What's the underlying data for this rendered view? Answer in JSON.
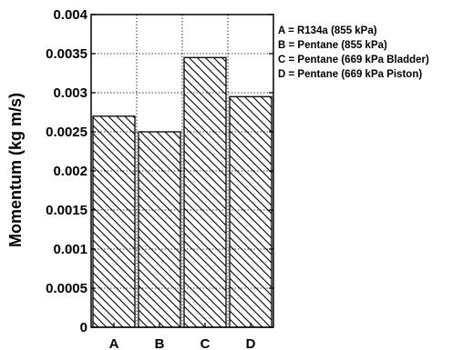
{
  "chart_data": {
    "type": "bar",
    "categories": [
      "A",
      "B",
      "C",
      "D"
    ],
    "values": [
      0.0027,
      0.0025,
      0.00345,
      0.00295
    ],
    "title": "",
    "xlabel": "",
    "ylabel": "Momentum (kg m/s)",
    "ylim": [
      0,
      0.004
    ],
    "yticks": [
      0,
      0.0005,
      0.001,
      0.0015,
      0.002,
      0.0025,
      0.003,
      0.0035,
      0.004
    ],
    "ytick_labels": [
      "0",
      "0.0005",
      "0.001",
      "0.0015",
      "0.002",
      "0.0025",
      "0.003",
      "0.0035",
      "0.004"
    ],
    "grid": true,
    "grid_style": "dotted",
    "bar_fill": "diagonal-hatch",
    "legend_placement": "right",
    "legend": [
      "A = R134a (855 kPa)",
      "B = Pentane (855 kPa)",
      "C = Pentane (669 kPa Bladder)",
      "D = Pentane (669 kPa Piston)"
    ]
  },
  "colors": {
    "ink": "#000000",
    "background": "#ffffff",
    "grid": "#000000"
  }
}
